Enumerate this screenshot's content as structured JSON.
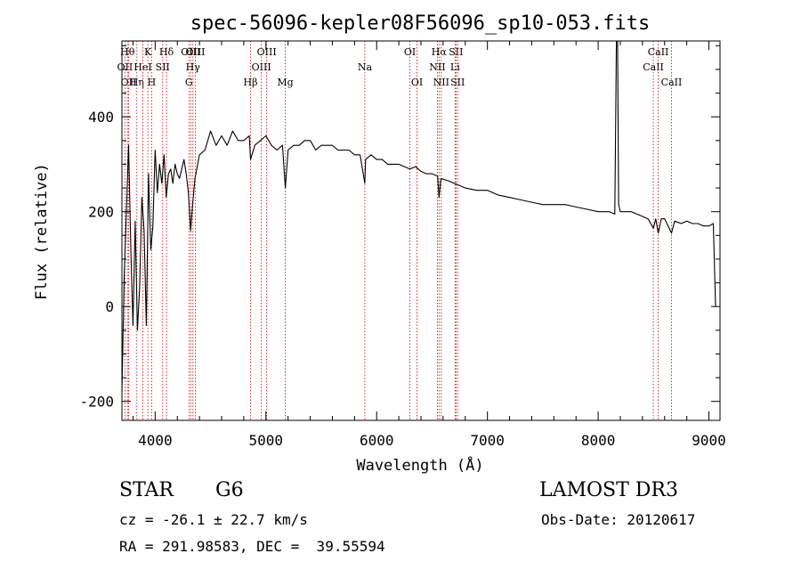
{
  "chart_data": {
    "type": "line",
    "title": "spec-56096-kepler08F56096_sp10-053.fits",
    "xlabel": "Wavelength (Å)",
    "ylabel": "Flux (relative)",
    "xlim": [
      3700,
      9100
    ],
    "ylim": [
      -240,
      560
    ],
    "xticks": [
      4000,
      5000,
      6000,
      7000,
      8000,
      9000
    ],
    "yticks": [
      -200,
      0,
      200,
      400
    ],
    "xminor_step": 200,
    "yminor_step": 50,
    "line_color": "#000000",
    "marker_color": "#cc0000",
    "series": [
      {
        "name": "flux",
        "points": [
          [
            3700,
            -180
          ],
          [
            3720,
            60
          ],
          [
            3740,
            200
          ],
          [
            3760,
            340
          ],
          [
            3780,
            120
          ],
          [
            3800,
            -40
          ],
          [
            3820,
            180
          ],
          [
            3840,
            -50
          ],
          [
            3860,
            40
          ],
          [
            3880,
            230
          ],
          [
            3900,
            160
          ],
          [
            3920,
            -40
          ],
          [
            3940,
            280
          ],
          [
            3960,
            120
          ],
          [
            3980,
            170
          ],
          [
            4000,
            330
          ],
          [
            4020,
            240
          ],
          [
            4040,
            300
          ],
          [
            4060,
            260
          ],
          [
            4080,
            320
          ],
          [
            4100,
            230
          ],
          [
            4120,
            280
          ],
          [
            4140,
            290
          ],
          [
            4160,
            260
          ],
          [
            4180,
            300
          ],
          [
            4200,
            280
          ],
          [
            4220,
            270
          ],
          [
            4240,
            290
          ],
          [
            4260,
            310
          ],
          [
            4280,
            280
          ],
          [
            4300,
            240
          ],
          [
            4320,
            160
          ],
          [
            4340,
            220
          ],
          [
            4360,
            270
          ],
          [
            4400,
            320
          ],
          [
            4450,
            330
          ],
          [
            4500,
            370
          ],
          [
            4550,
            340
          ],
          [
            4600,
            360
          ],
          [
            4650,
            340
          ],
          [
            4700,
            370
          ],
          [
            4750,
            350
          ],
          [
            4800,
            350
          ],
          [
            4850,
            360
          ],
          [
            4861,
            310
          ],
          [
            4900,
            340
          ],
          [
            4950,
            350
          ],
          [
            5000,
            360
          ],
          [
            5050,
            340
          ],
          [
            5100,
            330
          ],
          [
            5150,
            340
          ],
          [
            5175,
            250
          ],
          [
            5200,
            330
          ],
          [
            5250,
            340
          ],
          [
            5300,
            340
          ],
          [
            5350,
            350
          ],
          [
            5400,
            350
          ],
          [
            5450,
            330
          ],
          [
            5500,
            340
          ],
          [
            5550,
            340
          ],
          [
            5600,
            340
          ],
          [
            5650,
            330
          ],
          [
            5700,
            330
          ],
          [
            5750,
            330
          ],
          [
            5800,
            320
          ],
          [
            5850,
            320
          ],
          [
            5893,
            260
          ],
          [
            5900,
            310
          ],
          [
            5950,
            320
          ],
          [
            6000,
            310
          ],
          [
            6050,
            310
          ],
          [
            6100,
            300
          ],
          [
            6150,
            300
          ],
          [
            6200,
            300
          ],
          [
            6250,
            295
          ],
          [
            6300,
            290
          ],
          [
            6350,
            295
          ],
          [
            6400,
            285
          ],
          [
            6450,
            280
          ],
          [
            6500,
            280
          ],
          [
            6550,
            275
          ],
          [
            6563,
            230
          ],
          [
            6580,
            270
          ],
          [
            6650,
            265
          ],
          [
            6700,
            260
          ],
          [
            6750,
            255
          ],
          [
            6800,
            250
          ],
          [
            6900,
            245
          ],
          [
            7000,
            245
          ],
          [
            7100,
            235
          ],
          [
            7200,
            230
          ],
          [
            7300,
            225
          ],
          [
            7400,
            220
          ],
          [
            7500,
            215
          ],
          [
            7600,
            215
          ],
          [
            7700,
            215
          ],
          [
            7800,
            210
          ],
          [
            7900,
            205
          ],
          [
            8000,
            200
          ],
          [
            8100,
            200
          ],
          [
            8150,
            195
          ],
          [
            8165,
            560
          ],
          [
            8175,
            560
          ],
          [
            8185,
            215
          ],
          [
            8200,
            200
          ],
          [
            8300,
            200
          ],
          [
            8400,
            190
          ],
          [
            8450,
            185
          ],
          [
            8498,
            165
          ],
          [
            8520,
            185
          ],
          [
            8542,
            155
          ],
          [
            8570,
            185
          ],
          [
            8600,
            185
          ],
          [
            8662,
            155
          ],
          [
            8690,
            180
          ],
          [
            8750,
            175
          ],
          [
            8800,
            180
          ],
          [
            8850,
            175
          ],
          [
            8900,
            175
          ],
          [
            8950,
            170
          ],
          [
            9000,
            170
          ],
          [
            9040,
            175
          ],
          [
            9060,
            0
          ]
        ]
      }
    ],
    "lines": [
      {
        "label": "OII",
        "wl": 3727,
        "row": 2
      },
      {
        "label": "Hθ",
        "wl": 3750,
        "row": 1
      },
      {
        "label": "OII",
        "wl": 3760,
        "row": 3
      },
      {
        "label": "Hη",
        "wl": 3835,
        "row": 3
      },
      {
        "label": "HeI",
        "wl": 3889,
        "row": 2
      },
      {
        "label": "K",
        "wl": 3934,
        "row": 1
      },
      {
        "label": "H",
        "wl": 3969,
        "row": 3
      },
      {
        "label": "SII",
        "wl": 4068,
        "row": 2
      },
      {
        "label": "Hδ",
        "wl": 4102,
        "row": 1
      },
      {
        "label": "OIII",
        "wl": 4321,
        "row": 1
      },
      {
        "label": "Hγ",
        "wl": 4341,
        "row": 2
      },
      {
        "label": "G",
        "wl": 4305,
        "row": 3
      },
      {
        "label": "OIII",
        "wl": 4363,
        "row": 1
      },
      {
        "label": "Hβ",
        "wl": 4861,
        "row": 3
      },
      {
        "label": "OIII",
        "wl": 4959,
        "row": 2
      },
      {
        "label": "OIII",
        "wl": 5007,
        "row": 1
      },
      {
        "label": "Mg",
        "wl": 5175,
        "row": 3
      },
      {
        "label": "Na",
        "wl": 5893,
        "row": 2
      },
      {
        "label": "OI",
        "wl": 6300,
        "row": 1
      },
      {
        "label": "OI",
        "wl": 6364,
        "row": 3
      },
      {
        "label": "NII",
        "wl": 6548,
        "row": 2
      },
      {
        "label": "Hα",
        "wl": 6563,
        "row": 1
      },
      {
        "label": "NII",
        "wl": 6583,
        "row": 3
      },
      {
        "label": "SII",
        "wl": 6716,
        "row": 1
      },
      {
        "label": "Li",
        "wl": 6708,
        "row": 2
      },
      {
        "label": "SII",
        "wl": 6731,
        "row": 3
      },
      {
        "label": "CaII",
        "wl": 8498,
        "row": 2
      },
      {
        "label": "CaII",
        "wl": 8542,
        "row": 1
      },
      {
        "label": "CaII",
        "wl": 8662,
        "row": 3
      }
    ]
  },
  "info": {
    "class_label": "STAR",
    "subclass": "G6",
    "survey": "LAMOST DR3",
    "redshift_text": "cz = -26.1 ± 22.7 km/s",
    "obs_date": "Obs-Date: 20120617",
    "coords": "RA = 291.98583, DEC =  39.55594"
  }
}
